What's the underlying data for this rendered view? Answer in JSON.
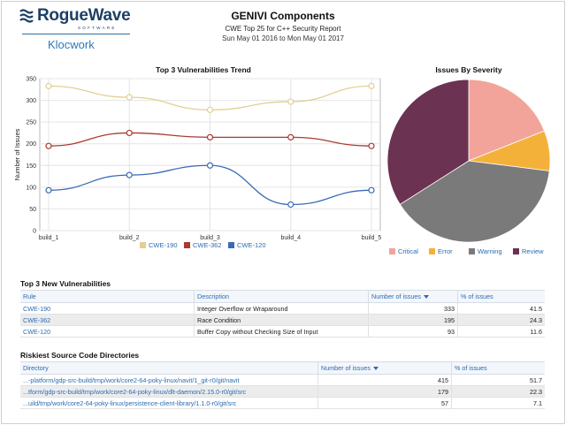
{
  "logo": {
    "brand": "RogueWave",
    "brand_sub": "SOFTWARE",
    "product": "Klocwork"
  },
  "header": {
    "title": "GENIVI Components",
    "subtitle": "CWE Top 25 for C++ Security Report",
    "date_range": "Sun May 01 2016 to Mon May 01 2017"
  },
  "colors": {
    "cwe190": "#e3cf93",
    "cwe362": "#a83a33",
    "cwe120": "#3a6bb6",
    "critical": "#f2a49a",
    "error": "#f4b13a",
    "warning": "#7a7a7a",
    "review": "#6b3252"
  },
  "chart_data": [
    {
      "type": "line",
      "title": "Top 3 Vulnerabilities Trend",
      "xlabel": "",
      "ylabel": "Number of Issues",
      "ylim": [
        0,
        350
      ],
      "yticks": [
        0,
        50,
        100,
        150,
        200,
        250,
        300,
        350
      ],
      "x": [
        "build_1",
        "build_2",
        "build_3",
        "build_4",
        "build_5"
      ],
      "grid": true,
      "legend": "bottom",
      "series": [
        {
          "name": "CWE-190",
          "color": "#e3cf93",
          "values": [
            333,
            307,
            278,
            297,
            333
          ]
        },
        {
          "name": "CWE-362",
          "color": "#a83a33",
          "values": [
            195,
            225,
            215,
            215,
            195
          ]
        },
        {
          "name": "CWE-120",
          "color": "#3a6bb6",
          "values": [
            93,
            128,
            150,
            60,
            93
          ]
        }
      ]
    },
    {
      "type": "pie",
      "title": "Issues By Severity",
      "legend": "bottom",
      "slices": [
        {
          "name": "Critical",
          "value": 19,
          "color": "#f2a49a"
        },
        {
          "name": "Error",
          "value": 8,
          "color": "#f4b13a"
        },
        {
          "name": "Warning",
          "value": 39,
          "color": "#7a7a7a"
        },
        {
          "name": "Review",
          "value": 34,
          "color": "#6b3252"
        }
      ]
    }
  ],
  "vulnerabilities": {
    "title": "Top 3 New Vulnerabilities",
    "columns": [
      "Rule",
      "Description",
      "Number of issues",
      "% of issues"
    ],
    "rows": [
      {
        "rule": "CWE-190",
        "description": "Integer Overflow or Wraparound",
        "issues": "333",
        "pct": "41.5"
      },
      {
        "rule": "CWE-362",
        "description": "Race Condition",
        "issues": "195",
        "pct": "24.3"
      },
      {
        "rule": "CWE-120",
        "description": "Buffer Copy without Checking Size of Input",
        "issues": "93",
        "pct": "11.6"
      }
    ]
  },
  "directories": {
    "title": "Riskiest Source Code Directories",
    "columns": [
      "Directory",
      "Number of issues",
      "% of issues"
    ],
    "rows": [
      {
        "directory": "...-platform/gdp-src-build/tmp/work/core2-64-poky-linux/navit/1_git-r0/git/navit",
        "issues": "415",
        "pct": "51.7"
      },
      {
        "directory": "...tform/gdp-src-build/tmp/work/core2-64-poky-linux/dlt-daemon/2.15.0-r0/git/src",
        "issues": "179",
        "pct": "22.3"
      },
      {
        "directory": "...uild/tmp/work/core2-64-poky-linux/persistence-client-library/1.1.0-r0/git/src",
        "issues": "57",
        "pct": "7.1"
      }
    ]
  }
}
